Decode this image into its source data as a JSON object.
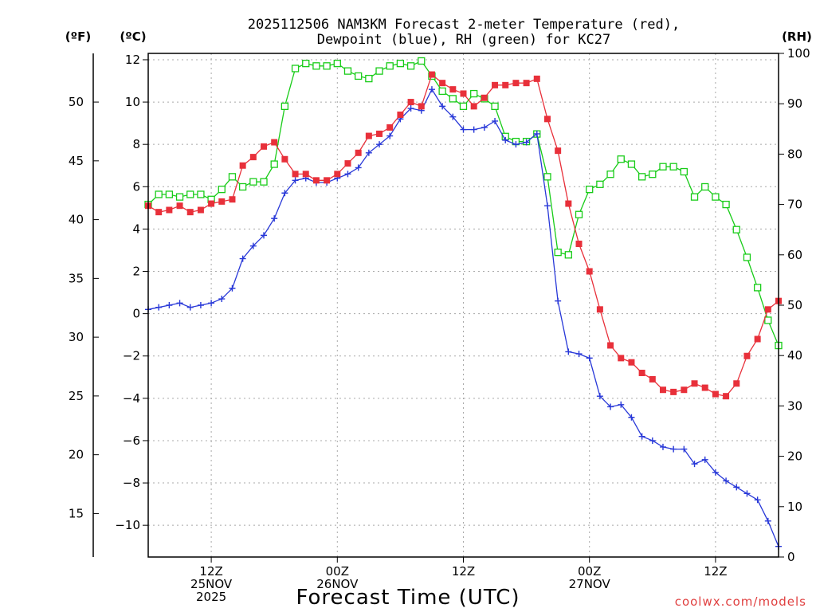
{
  "chart_data": {
    "type": "line",
    "title_line1": "2025112506 NAM3KM Forecast 2-meter Temperature (red),",
    "title_line2": "Dewpoint (blue), RH (green) for KC27",
    "units": {
      "fahrenheit": "(ºF)",
      "celsius": "(ºC)",
      "rh": "(RH)"
    },
    "xlabel": "Forecast Time (UTC)",
    "credit": "coolwx.com/models",
    "xlim": [
      0,
      60
    ],
    "ylim_celsius": [
      -11.5,
      12.3
    ],
    "ylim_rh": [
      0,
      100
    ],
    "x_ticks": [
      {
        "x": 6,
        "lines": [
          "12Z",
          "25NOV",
          "2025"
        ]
      },
      {
        "x": 18,
        "lines": [
          "00Z",
          "26NOV"
        ]
      },
      {
        "x": 30,
        "lines": [
          "12Z"
        ]
      },
      {
        "x": 42,
        "lines": [
          "00Z",
          "27NOV"
        ]
      },
      {
        "x": 54,
        "lines": [
          "12Z"
        ]
      }
    ],
    "celsius_ticks": [
      "12",
      "10",
      "8",
      "6",
      "4",
      "2",
      "0",
      "−2",
      "−4",
      "−6",
      "−8",
      "−10"
    ],
    "celsius_tick_values": [
      12,
      10,
      8,
      6,
      4,
      2,
      0,
      -2,
      -4,
      -6,
      -8,
      -10
    ],
    "fahrenheit_ticks": [
      "50",
      "45",
      "40",
      "35",
      "30",
      "25",
      "20",
      "15"
    ],
    "fahrenheit_tick_values": [
      50,
      45,
      40,
      35,
      30,
      25,
      20,
      15
    ],
    "rh_ticks": [
      "100",
      "90",
      "80",
      "70",
      "60",
      "50",
      "40",
      "30",
      "20",
      "10",
      "0"
    ],
    "rh_tick_values": [
      100,
      90,
      80,
      70,
      60,
      50,
      40,
      30,
      20,
      10,
      0
    ],
    "series": [
      {
        "name": "2-meter Temperature",
        "unit": "C",
        "color": "#e8303a",
        "marker": "filled-square",
        "x": [
          0,
          1,
          2,
          3,
          4,
          5,
          6,
          7,
          8,
          9,
          10,
          11,
          12,
          13,
          14,
          15,
          16,
          17,
          18,
          19,
          20,
          21,
          22,
          23,
          24,
          25,
          26,
          27,
          28,
          29,
          30,
          31,
          32,
          33,
          34,
          35,
          36,
          37,
          38,
          39,
          40,
          41,
          42,
          43,
          44,
          45,
          46,
          47,
          48,
          49,
          50,
          51,
          52,
          53,
          54,
          55,
          56,
          57,
          58,
          59,
          60
        ],
        "values": [
          5.1,
          4.8,
          4.9,
          5.1,
          4.8,
          4.9,
          5.2,
          5.3,
          5.4,
          7.0,
          7.4,
          7.9,
          8.1,
          7.3,
          6.6,
          6.6,
          6.3,
          6.3,
          6.6,
          7.1,
          7.6,
          8.4,
          8.5,
          8.8,
          9.4,
          10.0,
          9.8,
          11.3,
          10.9,
          10.6,
          10.4,
          9.8,
          10.2,
          10.8,
          10.8,
          10.9,
          10.9,
          11.1,
          9.2,
          7.7,
          5.2,
          3.3,
          2.0,
          0.2,
          -1.5,
          -2.1,
          -2.3,
          -2.8,
          -3.1,
          -3.6,
          -3.7,
          -3.6,
          -3.3,
          -3.5,
          -3.8,
          -3.9,
          -3.3,
          -2.0,
          -1.2,
          0.2,
          0.6
        ]
      },
      {
        "name": "Dewpoint",
        "unit": "C",
        "color": "#2838d8",
        "marker": "plus",
        "x": [
          0,
          1,
          2,
          3,
          4,
          5,
          6,
          7,
          8,
          9,
          10,
          11,
          12,
          13,
          14,
          15,
          16,
          17,
          18,
          19,
          20,
          21,
          22,
          23,
          24,
          25,
          26,
          27,
          28,
          29,
          30,
          31,
          32,
          33,
          34,
          35,
          36,
          37,
          38,
          39,
          40,
          41,
          42,
          43,
          44,
          45,
          46,
          47,
          48,
          49,
          50,
          51,
          52,
          53,
          54,
          55,
          56,
          57,
          58,
          59,
          60
        ],
        "values": [
          0.2,
          0.3,
          0.4,
          0.5,
          0.3,
          0.4,
          0.5,
          0.7,
          1.2,
          2.6,
          3.2,
          3.7,
          4.5,
          5.7,
          6.3,
          6.4,
          6.2,
          6.2,
          6.4,
          6.6,
          6.9,
          7.6,
          8.0,
          8.4,
          9.2,
          9.7,
          9.6,
          10.6,
          9.8,
          9.3,
          8.7,
          8.7,
          8.8,
          9.1,
          8.2,
          8.0,
          8.1,
          8.5,
          5.1,
          0.6,
          -1.8,
          -1.9,
          -2.1,
          -3.9,
          -4.4,
          -4.3,
          -4.9,
          -5.8,
          -6.0,
          -6.3,
          -6.4,
          -6.4,
          -7.1,
          -6.9,
          -7.5,
          -7.9,
          -8.2,
          -8.5,
          -8.8,
          -9.8,
          -11.0
        ]
      },
      {
        "name": "RH",
        "unit": "%",
        "color": "#18cc18",
        "marker": "open-square",
        "x": [
          0,
          1,
          2,
          3,
          4,
          5,
          6,
          7,
          8,
          9,
          10,
          11,
          12,
          13,
          14,
          15,
          16,
          17,
          18,
          19,
          20,
          21,
          22,
          23,
          24,
          25,
          26,
          27,
          28,
          29,
          30,
          31,
          32,
          33,
          34,
          35,
          36,
          37,
          38,
          39,
          40,
          41,
          42,
          43,
          44,
          45,
          46,
          47,
          48,
          49,
          50,
          51,
          52,
          53,
          54,
          55,
          56,
          57,
          58,
          59,
          60
        ],
        "values": [
          70,
          72,
          72,
          71.5,
          72,
          72,
          71,
          73,
          75.5,
          73.5,
          74.5,
          74.5,
          78,
          89.5,
          97,
          98,
          97.5,
          97.5,
          98,
          96.5,
          95.5,
          95,
          96.5,
          97.5,
          98,
          97.5,
          98.5,
          95.5,
          92.5,
          91,
          89.5,
          92,
          91,
          89.5,
          83.5,
          82.5,
          82.5,
          84,
          75.5,
          60.5,
          60,
          68,
          73,
          74,
          76,
          79,
          78,
          75.5,
          76,
          77.5,
          77.5,
          76.5,
          71.5,
          73.5,
          71.5,
          70,
          65,
          59.5,
          53.5,
          47,
          42
        ]
      }
    ]
  }
}
